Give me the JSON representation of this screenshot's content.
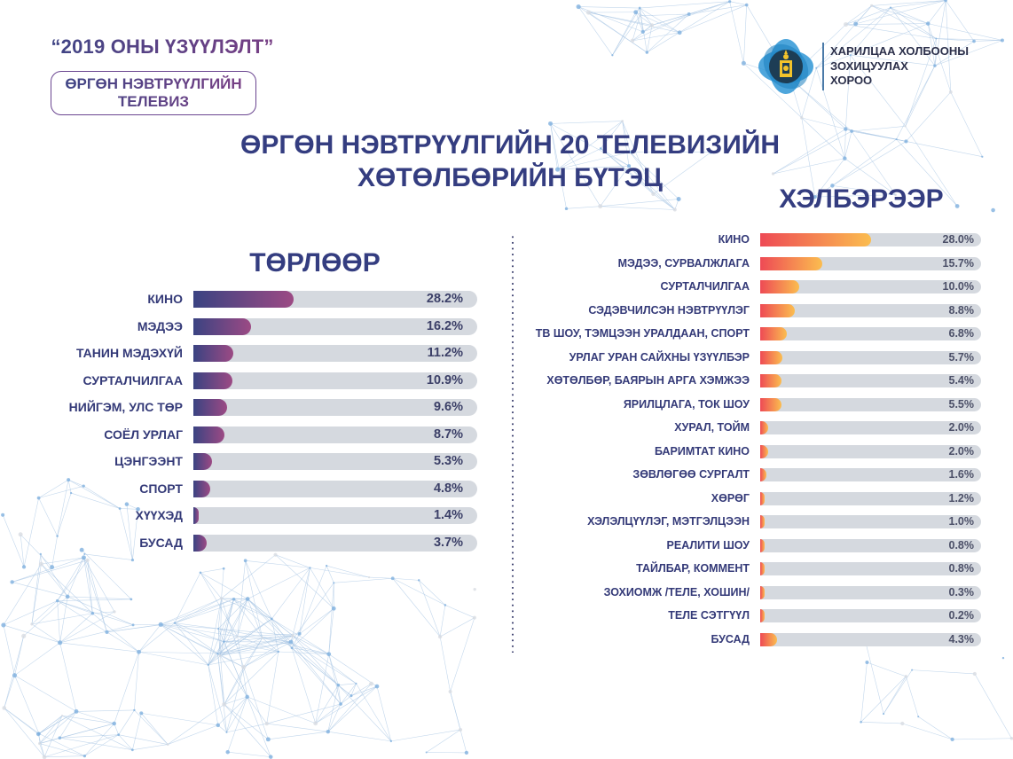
{
  "header": {
    "year_title": "“2019 ОНЫ ҮЗҮҮЛЭЛТ”",
    "badge": "ӨРГӨН НЭВТРҮҮЛГИЙН ТЕЛЕВИЗ",
    "org_lines": [
      "ХАРИЛЦАА ХОЛБООНЫ",
      "ЗОХИЦУУЛАХ",
      "ХОРОО"
    ],
    "logo_icon": "mongolian-soyombo-emblem-icon"
  },
  "main_title_lines": [
    "ӨРГӨН НЭВТРҮҮЛГИЙН 20 ТЕЛЕВИЗИЙН",
    "ХӨТӨЛБӨРИЙН БҮТЭЦ"
  ],
  "colors": {
    "title": "#343d80",
    "left_bar_start": "#3a4382",
    "left_bar_end": "#9c4a84",
    "right_bar_start": "#ee4a55",
    "right_bar_end": "#fbbd4f",
    "track": "#d5d9df"
  },
  "chart_data": [
    {
      "type": "bar",
      "orientation": "horizontal",
      "title": "ТӨРЛӨӨР",
      "unit": "%",
      "xlim": [
        0,
        80
      ],
      "categories": [
        "КИНО",
        "МЭДЭЭ",
        "ТАНИН МЭДЭХҮЙ",
        "СУРТАЛЧИЛГАА",
        "НИЙГЭМ, УЛС ТӨР",
        "СОЁЛ УРЛАГ",
        "ЦЭНГЭЭНТ",
        "СПОРТ",
        "ХҮҮХЭД",
        "БУСАД"
      ],
      "values": [
        28.2,
        16.2,
        11.2,
        10.9,
        9.6,
        8.7,
        5.3,
        4.8,
        1.4,
        3.7
      ],
      "value_labels": [
        "28.2%",
        "16.2%",
        "11.2%",
        "10.9%",
        "9.6%",
        "8.7%",
        "5.3%",
        "4.8%",
        "1.4%",
        "3.7%"
      ]
    },
    {
      "type": "bar",
      "orientation": "horizontal",
      "title": "ХЭЛБЭРЭЭР",
      "unit": "%",
      "xlim": [
        0,
        56
      ],
      "categories": [
        "КИНО",
        "МЭДЭЭ, СУРВАЛЖЛАГА",
        "СУРТАЛЧИЛГАА",
        "СЭДЭВЧИЛСЭН НЭВТРҮҮЛЭГ",
        "ТВ ШОУ, ТЭМЦЭЭН УРАЛДААН, СПОРТ",
        "УРЛАГ УРАН САЙХНЫ ҮЗҮҮЛБЭР",
        "ХӨТӨЛБӨР, БАЯРЫН АРГА ХЭМЖЭЭ",
        "ЯРИЛЦЛАГА, ТОК ШОУ",
        "ХУРАЛ, ТОЙМ",
        "БАРИМТАТ КИНО",
        "ЗӨВЛӨГӨӨ СУРГАЛТ",
        "ХӨРӨГ",
        "ХЭЛЭЛЦҮҮЛЭГ, МЭТГЭЛЦЭЭН",
        "РЕАЛИТИ ШОУ",
        "ТАЙЛБАР, КОММЕНТ",
        "ЗОХИОМЖ /ТЕЛЕ, ХОШИН/",
        "ТЕЛЕ СЭТГҮҮЛ",
        "БУСАД"
      ],
      "values": [
        28.0,
        15.7,
        10.0,
        8.8,
        6.8,
        5.7,
        5.4,
        5.5,
        2.0,
        2.0,
        1.6,
        1.2,
        1.0,
        0.8,
        0.8,
        0.3,
        0.2,
        4.3
      ],
      "value_labels": [
        "28.0%",
        "15.7%",
        "10.0%",
        "8.8%",
        "6.8%",
        "5.7%",
        "5.4%",
        "5.5%",
        "2.0%",
        "2.0%",
        "1.6%",
        "1.2%",
        "1.0%",
        "0.8%",
        "0.8%",
        "0.3%",
        "0.2%",
        "4.3%"
      ]
    }
  ]
}
